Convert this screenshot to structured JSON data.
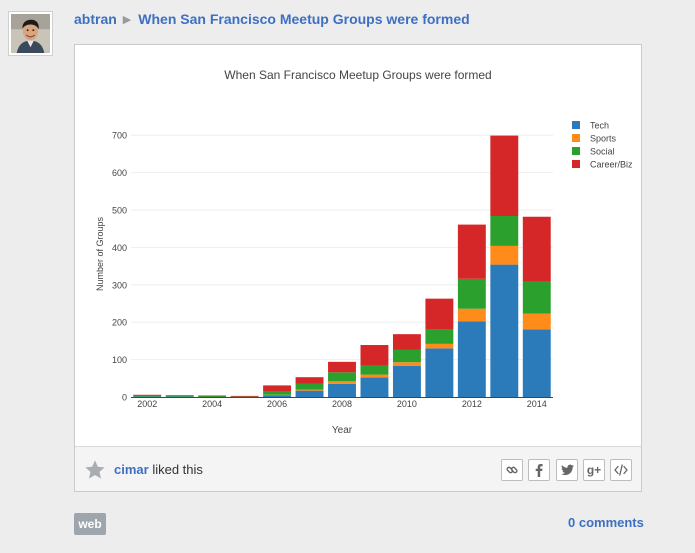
{
  "header": {
    "author": "abtran",
    "separator": "▶",
    "title": "When San Francisco Meetup Groups were formed"
  },
  "chart_data": {
    "type": "bar",
    "stacked": true,
    "title": "When San Francisco Meetup Groups were formed",
    "xlabel": "Year",
    "ylabel": "Number of Groups",
    "categories": [
      2002,
      2003,
      2004,
      2005,
      2006,
      2007,
      2008,
      2009,
      2010,
      2011,
      2012,
      2013,
      2014
    ],
    "xticks": [
      "2002",
      "2004",
      "2006",
      "2008",
      "2010",
      "2012",
      "2014"
    ],
    "yticks": [
      "0",
      "100",
      "200",
      "300",
      "400",
      "500",
      "600",
      "700"
    ],
    "ylim": [
      0,
      730
    ],
    "grid": true,
    "legend_position": "top-right",
    "series": [
      {
        "name": "Tech",
        "color": "#2b7bba",
        "values": [
          1,
          1,
          0,
          0,
          5,
          17,
          35,
          52,
          83,
          130,
          202,
          354,
          181
        ]
      },
      {
        "name": "Sports",
        "color": "#ff8c1a",
        "values": [
          0,
          0,
          0,
          0,
          1,
          3,
          7,
          8,
          10,
          12,
          34,
          50,
          42
        ]
      },
      {
        "name": "Social",
        "color": "#2ca02c",
        "values": [
          2,
          2,
          3,
          1,
          10,
          15,
          24,
          24,
          34,
          38,
          80,
          80,
          86
        ]
      },
      {
        "name": "Career/Biz",
        "color": "#d62728",
        "values": [
          3,
          2,
          1,
          2,
          15,
          18,
          28,
          55,
          41,
          83,
          145,
          215,
          173
        ]
      }
    ]
  },
  "footer": {
    "liker": "cimar",
    "liked_text": " liked this",
    "share_icons": [
      "link-icon",
      "facebook-icon",
      "twitter-icon",
      "google-plus-icon",
      "embed-icon"
    ],
    "gplus_label": "g+"
  },
  "bottom": {
    "badge": "web",
    "comments": "0 comments"
  },
  "colors": {
    "link": "#3d6fc2",
    "background": "#ededed"
  }
}
